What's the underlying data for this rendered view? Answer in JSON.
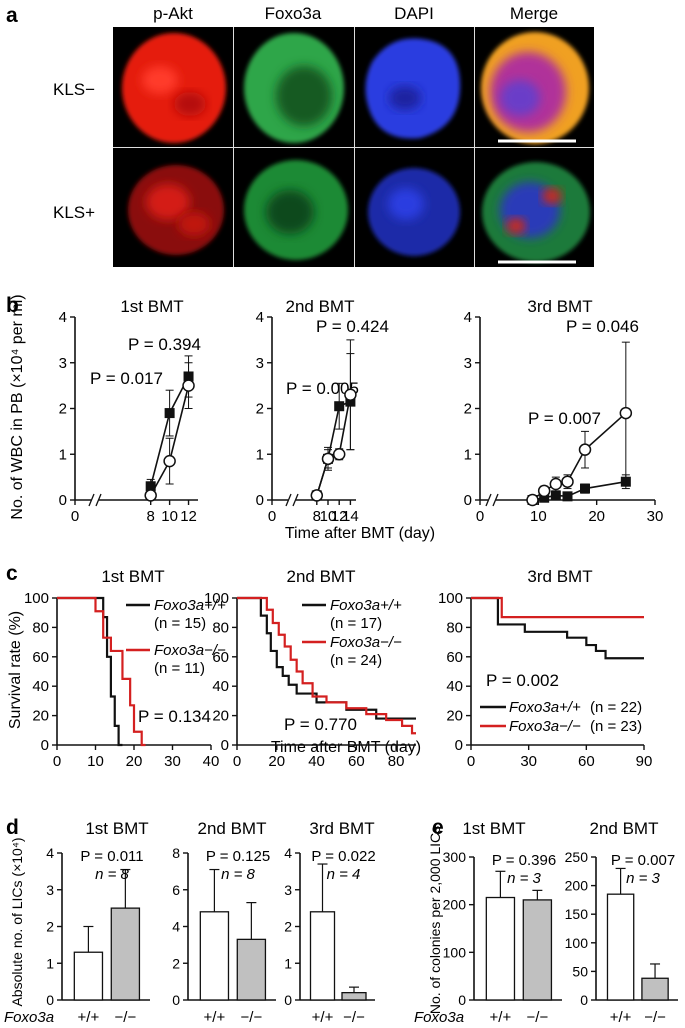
{
  "panel_letters": {
    "a": "a",
    "b": "b",
    "c": "c",
    "d": "d",
    "e": "e"
  },
  "panel_a": {
    "channels": [
      "p-Akt",
      "Foxo3a",
      "DAPI",
      "Merge"
    ],
    "rows": [
      "KLS−",
      "KLS+"
    ]
  },
  "colors": {
    "red_channel": "#e8190f",
    "green_channel": "#2fa64a",
    "blue_channel": "#2233cc",
    "ko_line": "#d42020",
    "wt_line": "#111111",
    "bar_ko_fill": "#c0c0c0",
    "bar_wt_fill": "#ffffff"
  },
  "chart_data": [
    {
      "id": "b1",
      "type": "line",
      "title": "1st BMT",
      "ylabel": "No. of WBC in PB (×10⁴ per ml)",
      "xlim": [
        0,
        13
      ],
      "ylim": [
        0,
        4
      ],
      "xticks": [
        "0",
        "8",
        "10",
        "12"
      ],
      "yticks": [
        "0",
        "1",
        "2",
        "3",
        "4"
      ],
      "annotations": [
        "P = 0.017",
        "P = 0.394"
      ],
      "series": [
        {
          "marker": "filled-square",
          "points": [
            [
              8,
              0.3
            ],
            [
              10,
              1.9
            ],
            [
              12,
              2.7
            ]
          ],
          "err": [
            0.15,
            0.5,
            0.45
          ]
        },
        {
          "marker": "open-circle",
          "points": [
            [
              8,
              0.1
            ],
            [
              10,
              0.85
            ],
            [
              12,
              2.5
            ]
          ],
          "err": [
            0.1,
            0.5,
            0.5
          ]
        }
      ]
    },
    {
      "id": "b2",
      "type": "line",
      "title": "2nd BMT",
      "xlim": [
        0,
        15
      ],
      "ylim": [
        0,
        4
      ],
      "xticks": [
        "0",
        "8",
        "10",
        "12",
        "14"
      ],
      "yticks": [
        "0",
        "1",
        "2",
        "3",
        "4"
      ],
      "xlabel": "Time after BMT (day)",
      "annotations": [
        "P = 0.005",
        "P = 0.424"
      ],
      "series": [
        {
          "marker": "filled-square",
          "points": [
            [
              8,
              0.1
            ],
            [
              10,
              0.9
            ],
            [
              12,
              2.05
            ],
            [
              14,
              2.15
            ]
          ],
          "err": [
            0.1,
            0.2,
            0.5,
            1.05
          ]
        },
        {
          "marker": "open-circle",
          "points": [
            [
              8,
              0.1
            ],
            [
              10,
              0.9
            ],
            [
              12,
              1.0
            ],
            [
              14,
              2.3
            ]
          ],
          "err": [
            0.1,
            0.25,
            0.12,
            1.2
          ]
        }
      ]
    },
    {
      "id": "b3",
      "type": "line",
      "title": "3rd BMT",
      "xlim": [
        0,
        30
      ],
      "ylim": [
        0,
        4
      ],
      "xticks": [
        "0",
        "10",
        "20",
        "30"
      ],
      "yticks": [
        "0",
        "1",
        "2",
        "3",
        "4"
      ],
      "annotations": [
        "P = 0.007",
        "P = 0.046"
      ],
      "series": [
        {
          "marker": "filled-square",
          "points": [
            [
              9,
              0
            ],
            [
              11,
              0.05
            ],
            [
              13,
              0.1
            ],
            [
              15,
              0.08
            ],
            [
              18,
              0.25
            ],
            [
              25,
              0.4
            ]
          ],
          "err": [
            0,
            0.05,
            0.05,
            0.05,
            0.1,
            0.15
          ]
        },
        {
          "marker": "open-circle",
          "points": [
            [
              9,
              0
            ],
            [
              11,
              0.2
            ],
            [
              13,
              0.35
            ],
            [
              15,
              0.4
            ],
            [
              18,
              1.1
            ],
            [
              25,
              1.9
            ]
          ],
          "err": [
            0,
            0.1,
            0.15,
            0.15,
            0.4,
            1.55
          ]
        }
      ]
    },
    {
      "id": "c1",
      "type": "line",
      "title": "1st BMT",
      "ylabel": "Survival rate (%)",
      "xlim": [
        0,
        40
      ],
      "ylim": [
        0,
        100
      ],
      "xticks": [
        "0",
        "10",
        "20",
        "30",
        "40"
      ],
      "yticks": [
        "0",
        "20",
        "40",
        "60",
        "80",
        "100"
      ],
      "annotations": [
        "P = 0.134"
      ],
      "series": [
        {
          "name": "Foxo3a+/+",
          "n": "(n = 15)",
          "color": "black",
          "steps": [
            [
              0,
              100
            ],
            [
              12,
              100
            ],
            [
              12,
              87
            ],
            [
              13,
              87
            ],
            [
              13,
              60
            ],
            [
              14,
              60
            ],
            [
              14,
              33
            ],
            [
              15,
              33
            ],
            [
              15,
              13
            ],
            [
              16,
              13
            ],
            [
              16,
              0
            ],
            [
              17,
              0
            ]
          ]
        },
        {
          "name": "Foxo3a−/−",
          "n": "(n = 11)",
          "color": "red",
          "steps": [
            [
              0,
              100
            ],
            [
              10,
              100
            ],
            [
              10,
              91
            ],
            [
              12,
              91
            ],
            [
              12,
              73
            ],
            [
              14,
              73
            ],
            [
              14,
              64
            ],
            [
              17,
              64
            ],
            [
              17,
              45
            ],
            [
              19,
              45
            ],
            [
              19,
              27
            ],
            [
              20,
              27
            ],
            [
              20,
              9
            ],
            [
              22,
              9
            ],
            [
              22,
              0
            ],
            [
              23,
              0
            ]
          ]
        }
      ]
    },
    {
      "id": "c2",
      "type": "line",
      "title": "2nd BMT",
      "xlim": [
        0,
        90
      ],
      "ylim": [
        0,
        100
      ],
      "xticks": [
        "0",
        "20",
        "40",
        "60",
        "80"
      ],
      "yticks": [
        "0",
        "20",
        "40",
        "60",
        "80",
        "100"
      ],
      "xlabel": "Time after BMT (day)",
      "annotations": [
        "P = 0.770"
      ],
      "series": [
        {
          "name": "Foxo3a+/+",
          "n": "(n = 17)",
          "color": "black",
          "steps": [
            [
              0,
              100
            ],
            [
              12,
              100
            ],
            [
              12,
              88
            ],
            [
              15,
              88
            ],
            [
              15,
              76
            ],
            [
              17,
              76
            ],
            [
              17,
              64
            ],
            [
              20,
              64
            ],
            [
              20,
              53
            ],
            [
              23,
              53
            ],
            [
              23,
              47
            ],
            [
              26,
              47
            ],
            [
              26,
              41
            ],
            [
              30,
              41
            ],
            [
              30,
              35
            ],
            [
              40,
              35
            ],
            [
              40,
              29
            ],
            [
              55,
              29
            ],
            [
              55,
              24
            ],
            [
              70,
              24
            ],
            [
              70,
              18
            ],
            [
              90,
              18
            ]
          ]
        },
        {
          "name": "Foxo3a−/−",
          "n": "(n = 24)",
          "color": "red",
          "steps": [
            [
              0,
              100
            ],
            [
              15,
              100
            ],
            [
              15,
              92
            ],
            [
              18,
              92
            ],
            [
              18,
              83
            ],
            [
              21,
              83
            ],
            [
              21,
              75
            ],
            [
              24,
              75
            ],
            [
              24,
              67
            ],
            [
              27,
              67
            ],
            [
              27,
              58
            ],
            [
              30,
              58
            ],
            [
              30,
              50
            ],
            [
              33,
              50
            ],
            [
              33,
              42
            ],
            [
              38,
              42
            ],
            [
              38,
              33
            ],
            [
              45,
              33
            ],
            [
              45,
              29
            ],
            [
              55,
              29
            ],
            [
              55,
              25
            ],
            [
              65,
              25
            ],
            [
              65,
              21
            ],
            [
              75,
              21
            ],
            [
              75,
              17
            ],
            [
              83,
              17
            ],
            [
              83,
              13
            ],
            [
              88,
              13
            ],
            [
              88,
              8
            ],
            [
              90,
              8
            ]
          ]
        }
      ]
    },
    {
      "id": "c3",
      "type": "line",
      "title": "3rd BMT",
      "xlim": [
        0,
        90
      ],
      "ylim": [
        0,
        100
      ],
      "xticks": [
        "0",
        "30",
        "60",
        "90"
      ],
      "yticks": [
        "0",
        "20",
        "40",
        "60",
        "80",
        "100"
      ],
      "annotations": [
        "P = 0.002"
      ],
      "series": [
        {
          "name": "Foxo3a+/+",
          "n": "(n = 22)",
          "color": "black",
          "steps": [
            [
              0,
              100
            ],
            [
              14,
              100
            ],
            [
              14,
              82
            ],
            [
              28,
              82
            ],
            [
              28,
              77
            ],
            [
              50,
              77
            ],
            [
              50,
              73
            ],
            [
              60,
              73
            ],
            [
              60,
              68
            ],
            [
              65,
              68
            ],
            [
              65,
              64
            ],
            [
              70,
              64
            ],
            [
              70,
              59
            ],
            [
              90,
              59
            ]
          ]
        },
        {
          "name": "Foxo3a−/−",
          "n": "(n = 23)",
          "color": "red",
          "steps": [
            [
              0,
              100
            ],
            [
              16,
              100
            ],
            [
              16,
              87
            ],
            [
              90,
              87
            ]
          ]
        }
      ]
    },
    {
      "id": "d1",
      "type": "bar",
      "title": "1st BMT",
      "ylabel": "Absolute no. of LICs (×10⁴)",
      "categories": [
        "+/+",
        "−/−"
      ],
      "values": [
        1.3,
        2.5
      ],
      "err": [
        0.7,
        1.05
      ],
      "ylim": [
        0,
        4
      ],
      "yticks": [
        "0",
        "1",
        "2",
        "3",
        "4"
      ],
      "annotations": [
        "P = 0.011",
        "n = 8"
      ]
    },
    {
      "id": "d2",
      "type": "bar",
      "title": "2nd BMT",
      "categories": [
        "+/+",
        "−/−"
      ],
      "values": [
        4.8,
        3.3
      ],
      "err": [
        2.3,
        2.0
      ],
      "ylim": [
        0,
        8
      ],
      "yticks": [
        "0",
        "2",
        "4",
        "6",
        "8"
      ],
      "annotations": [
        "P = 0.125",
        "n = 8"
      ]
    },
    {
      "id": "d3",
      "type": "bar",
      "title": "3rd BMT",
      "categories": [
        "+/+",
        "−/−"
      ],
      "values": [
        2.4,
        0.2
      ],
      "err": [
        1.3,
        0.15
      ],
      "ylim": [
        0,
        4
      ],
      "yticks": [
        "0",
        "1",
        "2",
        "3",
        "4"
      ],
      "annotations": [
        "P = 0.022",
        "n = 4"
      ]
    },
    {
      "id": "e1",
      "type": "bar",
      "title": "1st BMT",
      "ylabel": "No. of colonies per 2,000 LICs",
      "categories": [
        "+/+",
        "−/−"
      ],
      "values": [
        215,
        210
      ],
      "err": [
        55,
        20
      ],
      "ylim": [
        0,
        300
      ],
      "yticks": [
        "0",
        "100",
        "200",
        "300"
      ],
      "annotations": [
        "P = 0.396",
        "n = 3"
      ]
    },
    {
      "id": "e2",
      "type": "bar",
      "title": "2nd BMT",
      "categories": [
        "+/+",
        "−/−"
      ],
      "values": [
        185,
        38
      ],
      "err": [
        45,
        25
      ],
      "ylim": [
        0,
        250
      ],
      "yticks": [
        "0",
        "50",
        "100",
        "150",
        "200",
        "250"
      ],
      "annotations": [
        "P = 0.007",
        "n = 3"
      ]
    }
  ],
  "genotype_label": "Foxo3a"
}
